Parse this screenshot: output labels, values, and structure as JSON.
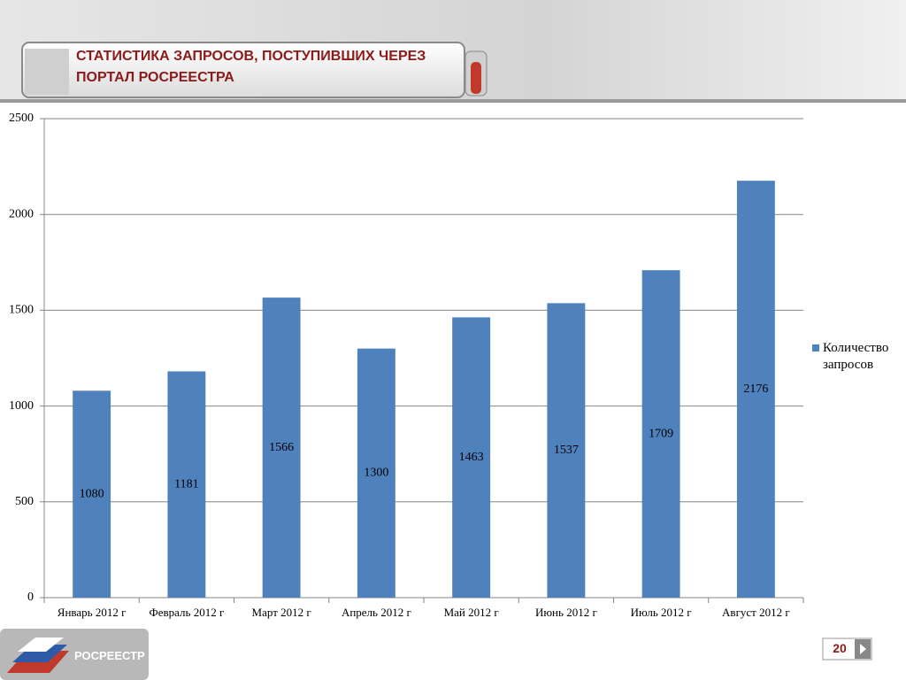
{
  "chart_data": {
    "type": "bar",
    "title": "СТАТИСТИКА ЗАПРОСОВ, ПОСТУПИВШИХ ЧЕРЕЗ ПОРТАЛ РОСРЕЕСТРА",
    "categories": [
      "Январь 2012 г",
      "Февраль 2012 г",
      "Март 2012 г",
      "Апрель 2012 г",
      "Май 2012 г",
      "Июнь 2012 г",
      "Июль 2012 г",
      "Август 2012 г"
    ],
    "series": [
      {
        "name": "Количество запросов",
        "color": "#4f81bd",
        "values": [
          1080,
          1181,
          1566,
          1300,
          1463,
          1537,
          1709,
          2176
        ]
      }
    ],
    "ylim": [
      0,
      2500
    ],
    "yticks": [
      0,
      500,
      1000,
      1500,
      2000,
      2500
    ],
    "grid": true,
    "legend": "right"
  },
  "footer": {
    "logo": "РОСРЕЕСТР",
    "page_number": 20
  }
}
